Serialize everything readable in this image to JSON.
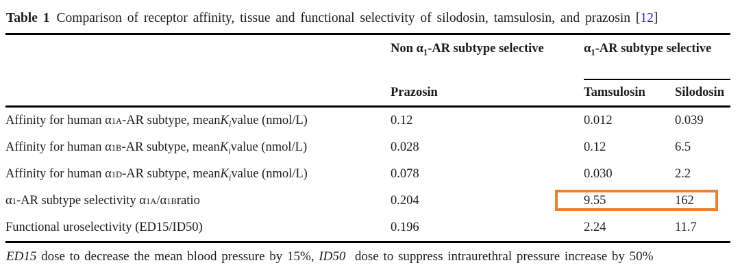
{
  "page": {
    "background": "#ffffff",
    "text_color": "#1b1b1b"
  },
  "caption": {
    "label": "Table 1",
    "text": "Comparison of receptor affinity, tissue and functional selectivity of silodosin, tamsulosin, and prazosin",
    "bracket_open": "[",
    "citation": "12",
    "bracket_close": "]",
    "citation_color": "#2424cc"
  },
  "table": {
    "group_headers": {
      "non_selective_html": "Non α<sub>1</sub>-AR subtype selective",
      "selective_html": "α<sub>1</sub>-AR subtype selective"
    },
    "column_headers": {
      "prazosin": "Prazosin",
      "tamsulosin": "Tamsulosin",
      "silodosin": "Silodosin"
    },
    "rows": [
      {
        "label_html": "Affinity for human α<sub>1A</sub>-AR subtype, mean <i>K<sub>i</sub></i> value (nmol/L)",
        "prazosin": "0.12",
        "tamsulosin": "0.012",
        "silodosin": "0.039"
      },
      {
        "label_html": "Affinity for human α<sub>1B</sub>-AR subtype, mean <i>K<sub>i</sub></i> value (nmol/L)",
        "prazosin": "0.028",
        "tamsulosin": "0.12",
        "silodosin": "6.5"
      },
      {
        "label_html": "Affinity for human α<sub>1D</sub>-AR subtype, mean <i>K<sub>i</sub></i> value (nmol/L)",
        "prazosin": "0.078",
        "tamsulosin": "0.030",
        "silodosin": "2.2"
      },
      {
        "label_html": "α<sub>1</sub>-AR subtype selectivity α<sub>1A</sub>/α<sub>1B</sub> ratio",
        "prazosin": "0.204",
        "tamsulosin": "9.55",
        "silodosin": "162"
      },
      {
        "label_html": "Functional uroselectivity (ED15/ID50)",
        "prazosin": "0.196",
        "tamsulosin": "2.24",
        "silodosin": "11.7"
      }
    ],
    "highlight": {
      "row_index": 3,
      "cells": [
        "tamsulosin",
        "silodosin"
      ],
      "border_color": "#f0802c"
    }
  },
  "footnote_html": "<i>ED15</i> dose to decrease the mean blood pressure by 15%, <i>ID50</i>&nbsp; dose to suppress intraurethral pressure increase by 50%"
}
